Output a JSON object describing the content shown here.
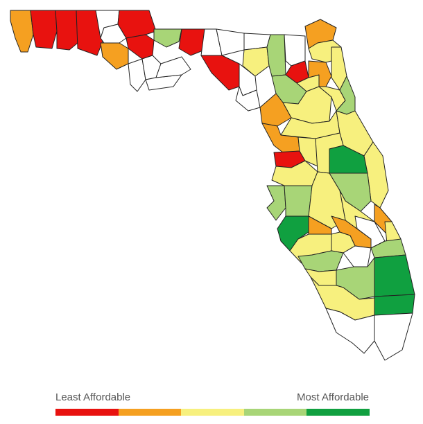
{
  "legend": {
    "left_label": "Least Affordable",
    "right_label": "Most Affordable",
    "colors": [
      "#e8120f",
      "#f5a021",
      "#f7f07e",
      "#a8d577",
      "#10a040"
    ]
  },
  "map": {
    "region": "Florida counties",
    "border_color": "#222222",
    "no_data_color": "#ffffff"
  }
}
